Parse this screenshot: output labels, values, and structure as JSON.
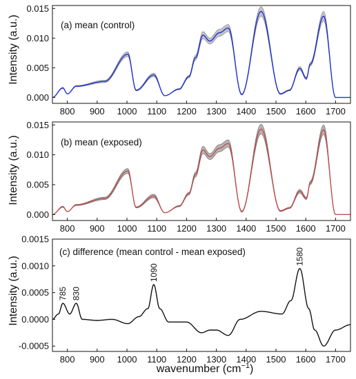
{
  "chart_data": [
    {
      "type": "line",
      "title": "(a) mean (control)",
      "ylabel": "Intensity (a.u.)",
      "xlim": [
        750,
        1750
      ],
      "ylim": [
        -0.001,
        0.0155
      ],
      "xticks": [
        "800",
        "900",
        "1000",
        "1100",
        "1200",
        "1300",
        "1400",
        "1500",
        "1600",
        "1700"
      ],
      "yticks": [
        "0.000",
        "0.005",
        "0.010",
        "0.015"
      ],
      "series": [
        {
          "color": "#2233cc",
          "band_color": "#7a7a88",
          "x": [
            750,
            785,
            800,
            830,
            925,
            1003,
            1031,
            1090,
            1127,
            1175,
            1208,
            1230,
            1255,
            1278,
            1310,
            1340,
            1385,
            1450,
            1515,
            1545,
            1580,
            1602,
            1615,
            1660,
            1700,
            1750
          ],
          "y": [
            0.0,
            0.0016,
            0.0006,
            0.0019,
            0.0027,
            0.0073,
            0.0012,
            0.0038,
            0.0003,
            0.0014,
            0.0035,
            0.0067,
            0.0105,
            0.0095,
            0.0109,
            0.0117,
            0.0005,
            0.0145,
            0.0006,
            0.0012,
            0.0049,
            0.0032,
            0.0056,
            0.0137,
            0.0,
            0.0
          ],
          "band_width": [
            0.0,
            0.0001,
            0.0,
            0.0001,
            0.0002,
            0.0004,
            0.0001,
            0.0003,
            0.0,
            0.0001,
            0.0002,
            0.0004,
            0.0006,
            0.0005,
            0.0006,
            0.0006,
            0.0001,
            0.0008,
            0.0001,
            0.0001,
            0.0003,
            0.0002,
            0.0003,
            0.0008,
            0.0,
            0.0
          ]
        }
      ]
    },
    {
      "type": "line",
      "title": "(b) mean (exposed)",
      "ylabel": "Intensity (a.u.)",
      "xlim": [
        750,
        1750
      ],
      "ylim": [
        -0.001,
        0.0155
      ],
      "xticks": [
        "800",
        "900",
        "1000",
        "1100",
        "1200",
        "1300",
        "1400",
        "1500",
        "1600",
        "1700"
      ],
      "yticks": [
        "0.000",
        "0.005",
        "0.010",
        "0.015"
      ],
      "series": [
        {
          "color": "#c0504d",
          "band_color": "#5a5a5a",
          "x": [
            750,
            785,
            800,
            830,
            925,
            1003,
            1031,
            1090,
            1127,
            1175,
            1208,
            1230,
            1255,
            1278,
            1310,
            1340,
            1385,
            1450,
            1515,
            1545,
            1580,
            1602,
            1615,
            1660,
            1700,
            1750
          ],
          "y": [
            0.0,
            0.0013,
            0.0005,
            0.0016,
            0.0027,
            0.0073,
            0.0012,
            0.0031,
            0.0003,
            0.0014,
            0.0035,
            0.0067,
            0.0108,
            0.0097,
            0.0111,
            0.0119,
            0.0005,
            0.0143,
            0.0006,
            0.0011,
            0.0039,
            0.0027,
            0.0053,
            0.0142,
            0.0,
            0.0
          ],
          "band_width": [
            0.0,
            0.0001,
            0.0,
            0.0001,
            0.0002,
            0.0004,
            0.0001,
            0.0003,
            0.0,
            0.0001,
            0.0002,
            0.0004,
            0.0006,
            0.0005,
            0.0006,
            0.0006,
            0.0001,
            0.0008,
            0.0001,
            0.0001,
            0.0003,
            0.0002,
            0.0003,
            0.0008,
            0.0,
            0.0
          ]
        }
      ]
    },
    {
      "type": "line",
      "title": "(c) difference (mean control - mean exposed)",
      "ylabel": "Intensity (a.u.)",
      "xlabel_base": "wavenumber (cm",
      "xlabel_sup": "−1",
      "xlabel_end": ")",
      "xlim": [
        750,
        1750
      ],
      "ylim": [
        -0.0006,
        0.0015
      ],
      "xticks": [
        "800",
        "900",
        "1000",
        "1100",
        "1200",
        "1300",
        "1400",
        "1500",
        "1600",
        "1700"
      ],
      "yticks": [
        "-0.0005",
        "0.0000",
        "0.0005",
        "0.0010",
        "0.0015"
      ],
      "annotations": [
        "785",
        "830",
        "1090",
        "1580"
      ],
      "series": [
        {
          "color": "#111111",
          "x": [
            750,
            770,
            785,
            808,
            830,
            850,
            900,
            950,
            1003,
            1040,
            1070,
            1090,
            1110,
            1140,
            1200,
            1250,
            1280,
            1300,
            1340,
            1380,
            1450,
            1520,
            1550,
            1580,
            1610,
            1630,
            1660,
            1700,
            1750
          ],
          "y": [
            0.0,
            0.0001,
            0.0003,
            0.0001,
            0.0003,
            0.0,
            -2e-05,
            0.0,
            -8e-05,
            5e-05,
            0.0002,
            0.00065,
            0.0002,
            -5e-05,
            -5e-05,
            -0.00025,
            -0.0002,
            -0.0002,
            -0.0003,
            0.0,
            0.00015,
            0.0001,
            0.00035,
            0.00095,
            0.0002,
            -0.0002,
            -0.0005,
            -0.0002,
            -0.0001
          ]
        }
      ]
    }
  ]
}
